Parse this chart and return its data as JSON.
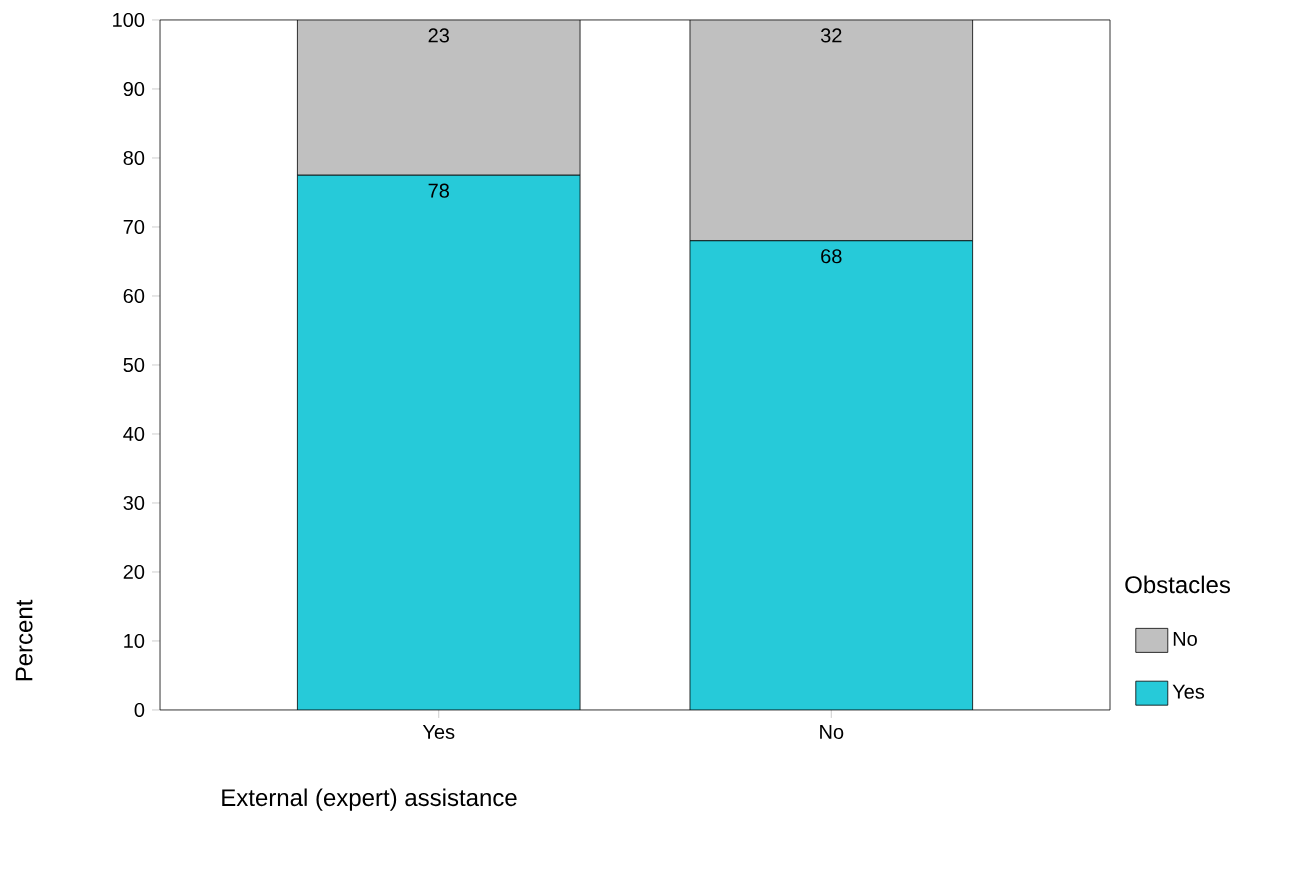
{
  "chart_data": {
    "type": "bar",
    "stacked": true,
    "xlabel": "External (expert) assistance",
    "ylabel": "Percent",
    "legend_title": "Obstacles",
    "legend": "right",
    "categories": [
      "Yes",
      "No"
    ],
    "series": [
      {
        "name": "Yes",
        "color": "#26cad9",
        "values": [
          77.5,
          68
        ],
        "value_labels": [
          "78",
          "68"
        ]
      },
      {
        "name": "No",
        "color": "#c0c0c0",
        "values": [
          22.5,
          32
        ],
        "value_labels": [
          "23",
          "32"
        ]
      }
    ],
    "ylim": [
      0,
      100
    ],
    "yticks": [
      0,
      10,
      20,
      30,
      40,
      50,
      60,
      70,
      80,
      90,
      100
    ]
  }
}
